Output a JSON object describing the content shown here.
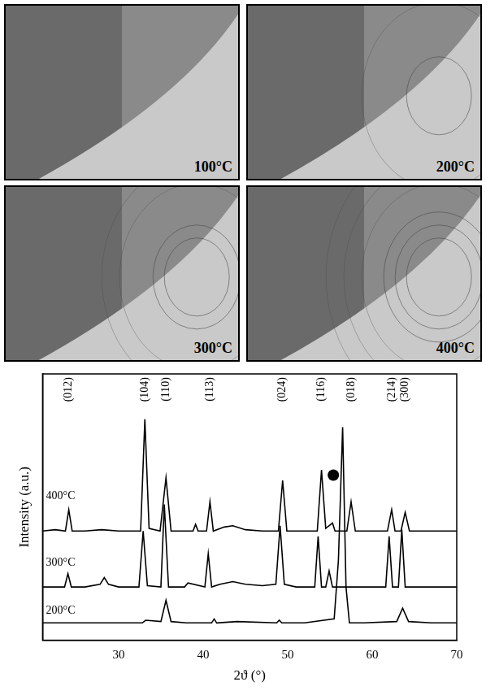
{
  "panels": [
    "100°C",
    "200°C",
    "300°C",
    "400°C"
  ],
  "chart_data": {
    "type": "line",
    "x_label": "2ϑ (°)",
    "y_label": "Intensity (a.u.)",
    "xlim": [
      21,
      70
    ],
    "xticks": [
      30,
      40,
      50,
      60,
      70
    ],
    "ylim": [
      0,
      100
    ],
    "tick_labels": "x",
    "grid": false,
    "series": [
      {
        "name": "400°C",
        "color": "#000000",
        "label_at": {
          "x": 21.4,
          "y": 54
        },
        "x": [
          21,
          22.5,
          23.7,
          24.1,
          24.5,
          26,
          28,
          30,
          32.6,
          33.1,
          33.6,
          34.9,
          35.6,
          36.2,
          37.5,
          38.8,
          39.1,
          39.4,
          40.4,
          40.8,
          41.2,
          42.5,
          43.5,
          45,
          47,
          48.9,
          49.4,
          49.9,
          51,
          52.5,
          53.5,
          54.0,
          54.5,
          55.1,
          55.3,
          55.6,
          57.0,
          57.5,
          58.0,
          59.5,
          61.8,
          62.3,
          62.7,
          63.4,
          63.9,
          64.4,
          66,
          68,
          70
        ],
        "values": [
          41,
          41.5,
          41,
          49,
          41,
          41,
          41.5,
          41,
          41,
          83,
          42,
          41,
          61,
          41,
          41,
          41,
          43.5,
          41,
          41,
          52,
          41,
          42.5,
          43,
          41.5,
          41,
          41,
          60,
          41,
          41,
          41,
          41,
          64,
          42,
          43.5,
          44,
          41,
          41,
          52,
          41,
          41,
          41,
          49,
          41,
          41,
          48,
          41,
          41,
          41,
          41
        ]
      },
      {
        "name": "300°C",
        "color": "#000000",
        "label_at": {
          "x": 21.4,
          "y": 29
        },
        "x": [
          21,
          23.6,
          24.0,
          24.4,
          26,
          27.8,
          28.3,
          28.8,
          30,
          32.4,
          32.9,
          33.4,
          35.0,
          35.4,
          35.9,
          37,
          37.8,
          38.2,
          40.2,
          40.6,
          41.0,
          42,
          43.5,
          45,
          47,
          48.6,
          49.1,
          49.6,
          51,
          53.2,
          53.6,
          54.0,
          54.5,
          54.9,
          55.3,
          57,
          59,
          61.6,
          62.0,
          62.4,
          63.1,
          63.5,
          63.9,
          65,
          67,
          70
        ],
        "values": [
          20,
          20,
          25,
          20,
          20,
          21,
          23.5,
          21,
          20,
          20,
          41,
          20.5,
          20,
          51,
          20,
          20,
          20,
          21.5,
          20,
          32.5,
          20,
          21,
          22,
          21,
          20.5,
          21,
          43,
          21,
          20,
          20,
          39,
          20,
          20,
          26,
          20,
          20,
          20,
          20,
          39,
          20,
          20,
          41.5,
          20,
          20,
          20,
          20
        ]
      },
      {
        "name": "200°C",
        "color": "#000000",
        "label_at": {
          "x": 21.4,
          "y": 11
        },
        "x": [
          21,
          25,
          29,
          32.8,
          33.2,
          35.0,
          35.6,
          36.2,
          38,
          41.0,
          41.3,
          41.6,
          44,
          48.7,
          49.0,
          49.3,
          52,
          55.5,
          56.0,
          56.5,
          56.9,
          57.3,
          59,
          62.9,
          63.6,
          64.3,
          67,
          70
        ],
        "values": [
          6.5,
          6.5,
          6.5,
          6.5,
          7.5,
          7,
          15,
          7,
          6.5,
          6.5,
          8,
          6.5,
          7,
          6.5,
          7.5,
          6.5,
          6.5,
          8,
          30,
          80,
          20,
          6.5,
          6.5,
          7,
          12,
          7,
          6.5,
          6.5
        ]
      }
    ],
    "annotations": [
      {
        "text": "(012)",
        "x": 24.1
      },
      {
        "text": "(104)",
        "x": 33.1
      },
      {
        "text": "(110)",
        "x": 35.6
      },
      {
        "text": "(113)",
        "x": 40.8
      },
      {
        "text": "(024)",
        "x": 49.4
      },
      {
        "text": "(116)",
        "x": 54.0
      },
      {
        "text": "(018)",
        "x": 57.5
      },
      {
        "text": "(214)",
        "x": 62.3
      },
      {
        "text": "(300)",
        "x": 63.9
      }
    ],
    "markers": [
      {
        "marker": "circle",
        "x": 55.4,
        "y": 62,
        "color": "#000000"
      }
    ]
  }
}
